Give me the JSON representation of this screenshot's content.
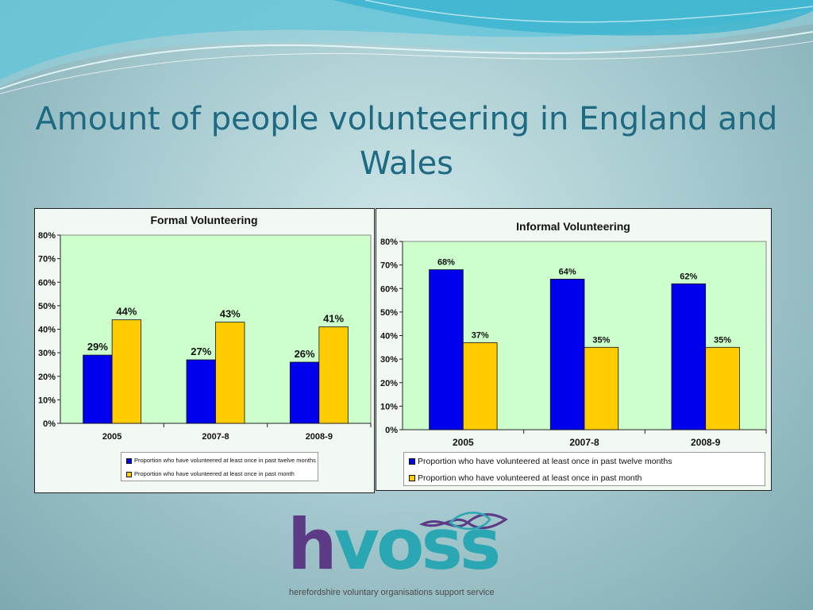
{
  "slide": {
    "title": "Amount of people volunteering in England and Wales"
  },
  "logo": {
    "h": "h",
    "voss": "voss",
    "tagline": "herefordshire voluntary organisations support service",
    "colors": {
      "h": "#5c3a86",
      "voss": "#2ba7b3"
    }
  },
  "chart_data": [
    {
      "type": "bar",
      "title": "Formal Volunteering",
      "categories": [
        "2005",
        "2007-8",
        "2008-9"
      ],
      "series": [
        {
          "name": "Proportion who have volunteered at least once in past twelve months",
          "values": [
            29,
            27,
            26
          ],
          "color": "#0000ee"
        },
        {
          "name": "Proportion who have volunteered at least once in past month",
          "values": [
            44,
            43,
            41
          ],
          "color": "#ffcc00"
        }
      ],
      "data_labels": [
        [
          "29%",
          "27%",
          "26%"
        ],
        [
          "44%",
          "43%",
          "41%"
        ]
      ],
      "yticks": [
        "0%",
        "10%",
        "20%",
        "30%",
        "40%",
        "50%",
        "60%",
        "70%",
        "80%"
      ],
      "ylim": [
        0,
        80
      ],
      "plot_background": "#ccffcc",
      "legend_position": "bottom"
    },
    {
      "type": "bar",
      "title": "Informal Volunteering",
      "categories": [
        "2005",
        "2007-8",
        "2008-9"
      ],
      "series": [
        {
          "name": "Proportion who have volunteered at least once in past twelve months",
          "values": [
            68,
            64,
            62
          ],
          "color": "#0000ee"
        },
        {
          "name": "Proportion who have volunteered at least once in past month",
          "values": [
            37,
            35,
            35
          ],
          "color": "#ffcc00"
        }
      ],
      "data_labels": [
        [
          "68%",
          "64%",
          "62%"
        ],
        [
          "37%",
          "35%",
          "35%"
        ]
      ],
      "yticks": [
        "0%",
        "10%",
        "20%",
        "30%",
        "40%",
        "50%",
        "60%",
        "70%",
        "80%"
      ],
      "ylim": [
        0,
        80
      ],
      "plot_background": "#ccffcc",
      "legend_position": "bottom"
    }
  ]
}
